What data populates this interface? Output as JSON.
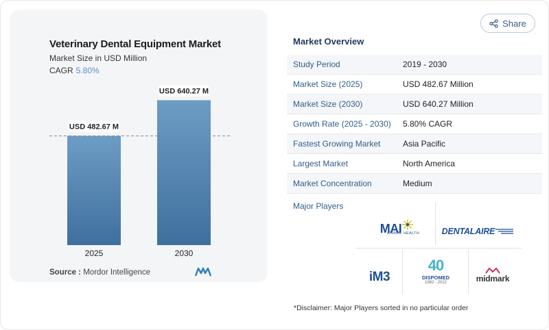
{
  "share": {
    "label": "Share"
  },
  "chart_card": {
    "title": "Veterinary Dental Equipment Market",
    "subtitle": "Market Size in USD Million",
    "cagr_label": "CAGR",
    "cagr_value": "5.80%",
    "source_label": "Source :",
    "source_value": "Mordor Intelligence"
  },
  "chart_data": {
    "type": "bar",
    "categories": [
      "2025",
      "2030"
    ],
    "values": [
      482.67,
      640.27
    ],
    "data_labels": [
      "USD 482.67 M",
      "USD 640.27 M"
    ],
    "title": "Veterinary Dental Equipment Market",
    "subtitle": "Market Size in USD Million",
    "xlabel": "",
    "ylabel": "",
    "ylim": [
      0,
      720
    ],
    "grid": false,
    "reference_line": {
      "value": 482.67,
      "style": "dashed"
    },
    "bar_color_top": "#6d9cc4",
    "bar_color_bottom": "#3f6f9e"
  },
  "overview": {
    "title": "Market Overview",
    "rows": [
      {
        "label": "Study Period",
        "value": "2019 - 2030"
      },
      {
        "label": "Market Size (2025)",
        "value": "USD 482.67 Million"
      },
      {
        "label": "Market Size (2030)",
        "value": "USD 640.27 Million"
      },
      {
        "label": "Growth Rate (2025 - 2030)",
        "value": "5.80% CAGR"
      },
      {
        "label": "Fastest Growing Market",
        "value": "Asia Pacific"
      },
      {
        "label": "Largest Market",
        "value": "North America"
      },
      {
        "label": "Market Concentration",
        "value": "Medium"
      }
    ]
  },
  "major_players": {
    "title": "Major Players",
    "logos": {
      "mai": {
        "name": "MAI",
        "sub": "ANIMAL HEALTH"
      },
      "dentalaire": {
        "name": "DENTALAIRE"
      },
      "im3": {
        "name": "iM3"
      },
      "dispomed": {
        "number": "40",
        "name": "DISPOMED",
        "years": "1982 - 2022"
      },
      "midmark": {
        "name": "midmark"
      }
    }
  },
  "disclaimer": "*Disclaimer: Major Players sorted in no particular order",
  "colors": {
    "accent": "#2f5d8a",
    "cagr": "#5b8fc7",
    "bar": "#5a8bb8"
  }
}
